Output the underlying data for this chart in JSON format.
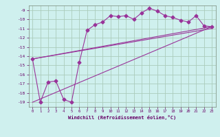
{
  "xlabel": "Windchill (Refroidissement éolien,°C)",
  "background_color": "#cff0ee",
  "grid_color": "#aaccbb",
  "line_color": "#993399",
  "xlim": [
    -0.5,
    23.5
  ],
  "ylim": [
    -19.5,
    -8.5
  ],
  "yticks": [
    -19,
    -18,
    -17,
    -16,
    -15,
    -14,
    -13,
    -12,
    -11,
    -10,
    -9
  ],
  "xticks": [
    0,
    1,
    2,
    3,
    4,
    5,
    6,
    7,
    8,
    9,
    10,
    11,
    12,
    13,
    14,
    15,
    16,
    17,
    18,
    19,
    20,
    21,
    22,
    23
  ],
  "series1_x": [
    0,
    1,
    2,
    3,
    4,
    5,
    6,
    7,
    8,
    9,
    10,
    11,
    12,
    13,
    14,
    15,
    16,
    17,
    18,
    19,
    20,
    21,
    22,
    23
  ],
  "series1_y": [
    -14.3,
    -19.0,
    -16.8,
    -16.7,
    -18.7,
    -19.0,
    -14.7,
    -11.2,
    -10.6,
    -10.3,
    -9.6,
    -9.7,
    -9.6,
    -10.0,
    -9.3,
    -8.8,
    -9.1,
    -9.6,
    -9.8,
    -10.1,
    -10.3,
    -9.6,
    -10.7,
    -10.8
  ],
  "series2_x": [
    0,
    23
  ],
  "series2_y": [
    -14.3,
    -10.8
  ],
  "series3_x": [
    0,
    23
  ],
  "series3_y": [
    -19.0,
    -10.8
  ],
  "series4_x": [
    0,
    23
  ],
  "series4_y": [
    -14.3,
    -11.0
  ]
}
